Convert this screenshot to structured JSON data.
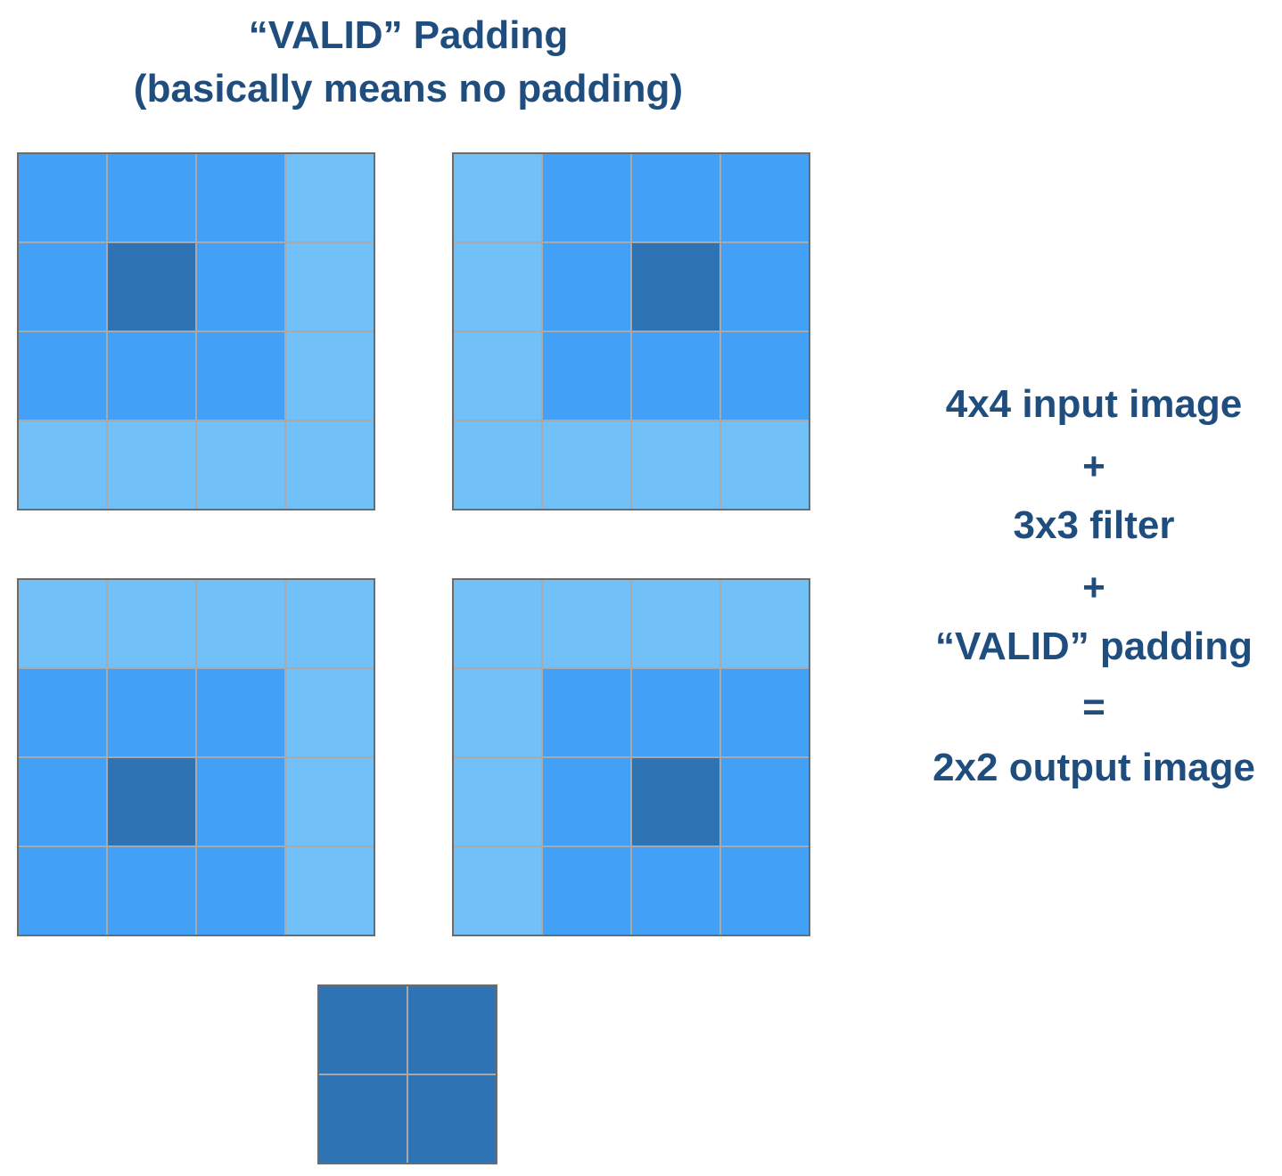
{
  "title": {
    "line1": "“VALID” Padding",
    "line2": "(basically means no padding)"
  },
  "colors": {
    "light": "#72c0f8",
    "medium": "#42a1f6",
    "dark": "#2e73b4",
    "text": "#1f4e7e",
    "grid_line": "#a9a9a9",
    "border": "#6b6b6b"
  },
  "grids": {
    "top_left": [
      [
        "medium",
        "medium",
        "medium",
        "light"
      ],
      [
        "medium",
        "dark",
        "medium",
        "light"
      ],
      [
        "medium",
        "medium",
        "medium",
        "light"
      ],
      [
        "light",
        "light",
        "light",
        "light"
      ]
    ],
    "top_right": [
      [
        "light",
        "medium",
        "medium",
        "medium"
      ],
      [
        "light",
        "medium",
        "dark",
        "medium"
      ],
      [
        "light",
        "medium",
        "medium",
        "medium"
      ],
      [
        "light",
        "light",
        "light",
        "light"
      ]
    ],
    "bottom_left": [
      [
        "light",
        "light",
        "light",
        "light"
      ],
      [
        "medium",
        "medium",
        "medium",
        "light"
      ],
      [
        "medium",
        "dark",
        "medium",
        "light"
      ],
      [
        "medium",
        "medium",
        "medium",
        "light"
      ]
    ],
    "bottom_right": [
      [
        "light",
        "light",
        "light",
        "light"
      ],
      [
        "light",
        "medium",
        "medium",
        "medium"
      ],
      [
        "light",
        "medium",
        "dark",
        "medium"
      ],
      [
        "light",
        "medium",
        "medium",
        "medium"
      ]
    ],
    "output": [
      [
        "dark",
        "dark"
      ],
      [
        "dark",
        "dark"
      ]
    ]
  },
  "equation": [
    "4x4 input image",
    "+",
    "3x3 filter",
    "+",
    "“VALID” padding",
    "=",
    "2x2 output image"
  ]
}
